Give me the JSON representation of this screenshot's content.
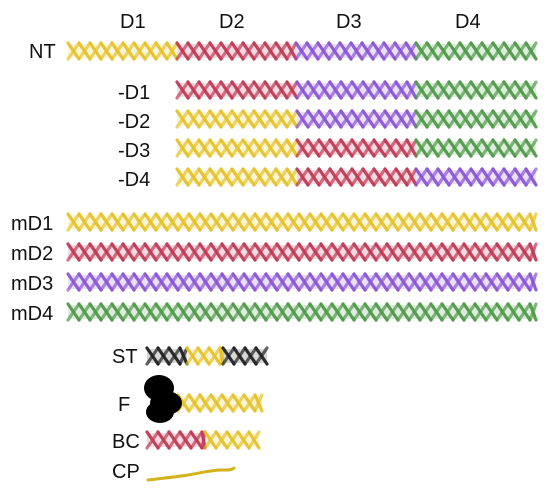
{
  "domains": [
    {
      "label": "D1",
      "color": "#e6c229"
    },
    {
      "label": "D2",
      "color": "#c03a55"
    },
    {
      "label": "D3",
      "color": "#8a55d6"
    },
    {
      "label": "D4",
      "color": "#4f9a48"
    }
  ],
  "rows": {
    "nt": {
      "label": "NT",
      "segments": [
        "D1",
        "D2",
        "D3",
        "D4"
      ]
    },
    "deletions": [
      {
        "label": "-D1",
        "segments": [
          "D2",
          "D3",
          "D4"
        ]
      },
      {
        "label": "-D2",
        "segments": [
          "D1",
          "D3",
          "D4"
        ]
      },
      {
        "label": "-D3",
        "segments": [
          "D1",
          "D2",
          "D4"
        ]
      },
      {
        "label": "-D4",
        "segments": [
          "D1",
          "D2",
          "D3"
        ]
      }
    ],
    "multimers": [
      {
        "label": "mD1",
        "segments": [
          "D1"
        ]
      },
      {
        "label": "mD2",
        "segments": [
          "D2"
        ]
      },
      {
        "label": "mD3",
        "segments": [
          "D3"
        ]
      },
      {
        "label": "mD4",
        "segments": [
          "D4"
        ]
      }
    ]
  },
  "legend": [
    {
      "label": "ST",
      "kind": "striped"
    },
    {
      "label": "F",
      "kind": "blob"
    },
    {
      "label": "BC",
      "kind": "bicolor"
    },
    {
      "label": "CP",
      "kind": "coil"
    }
  ],
  "colors": {
    "black_helix": "#222222",
    "coil": "#d4b21a",
    "blob": "#000000"
  }
}
